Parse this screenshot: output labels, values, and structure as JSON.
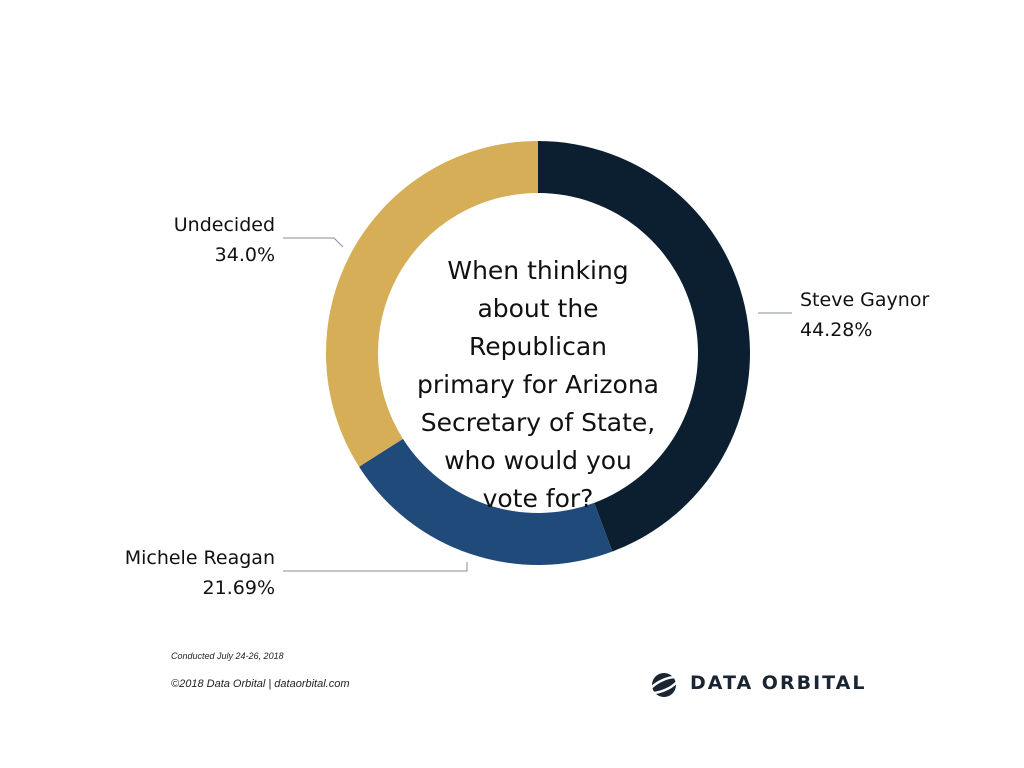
{
  "chart_data": {
    "type": "pie",
    "title": "When thinking about the Republican primary for Arizona Secretary of State, who would you vote for?",
    "title_lines": [
      "When thinking",
      "about the Republican",
      "primary for Arizona",
      "Secretary of State,",
      "who would you",
      "vote for?"
    ],
    "slices": [
      {
        "label": "Steve Gaynor",
        "value": 44.28,
        "display": "44.28%",
        "color": "#0c1f31"
      },
      {
        "label": "Michele Reagan",
        "value": 21.69,
        "display": "21.69%",
        "color": "#1f4a7a"
      },
      {
        "label": "Undecided",
        "value": 34.0,
        "display": "34.0%",
        "color": "#d5ae57"
      }
    ]
  },
  "footer": {
    "conducted": "Conducted July  24-26, 2018",
    "copyright": "©2018 Data Orbital | dataorbital.com"
  },
  "logo": {
    "text": "DATA ORBITAL",
    "icon": "data-orbital-logo-icon"
  },
  "colors": {
    "leader_line": "#8a8f96"
  }
}
